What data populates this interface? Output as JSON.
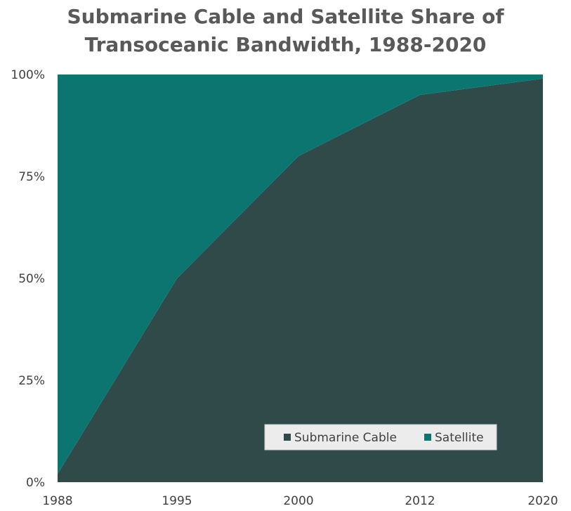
{
  "chart_data": {
    "type": "area",
    "stacked": true,
    "percent": true,
    "title_lines": [
      "Submarine Cable and Satellite Share of",
      "Transoceanic Bandwidth, 1988-2020"
    ],
    "categories": [
      "1988",
      "1995",
      "2000",
      "2012",
      "2020"
    ],
    "series": [
      {
        "name": "Submarine Cable",
        "color": "#2f4a48",
        "values": [
          2,
          50,
          80,
          95,
          99
        ]
      },
      {
        "name": "Satellite",
        "color": "#0d7570",
        "values": [
          98,
          50,
          20,
          5,
          1
        ]
      }
    ],
    "y_ticks": [
      "0%",
      "25%",
      "50%",
      "75%",
      "100%"
    ],
    "ylim": [
      0,
      100
    ],
    "grid": false,
    "legend_position": "bottom-right"
  }
}
